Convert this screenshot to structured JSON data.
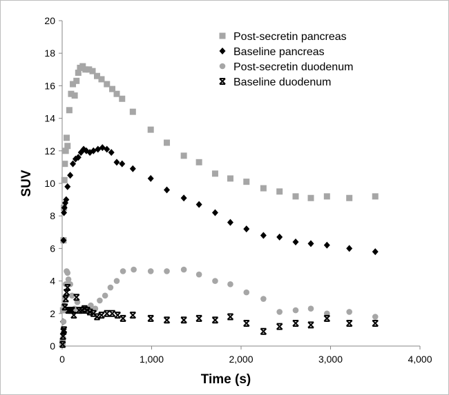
{
  "chart_data": {
    "type": "scatter",
    "xlabel": "Time (s)",
    "ylabel": "SUV",
    "xlim": [
      0,
      4000
    ],
    "ylim": [
      0,
      20
    ],
    "x_ticks": [
      "0",
      "1,000",
      "2,000",
      "3,000",
      "4,000"
    ],
    "y_ticks": [
      "0",
      "2",
      "4",
      "6",
      "8",
      "10",
      "12",
      "14",
      "16",
      "18",
      "20"
    ],
    "grid": false,
    "legend_position": "top-right",
    "series": [
      {
        "name": "Post-secretin pancreas",
        "marker": "square",
        "color": "#a6a6a6",
        "points": [
          [
            5,
            0.3
          ],
          [
            10,
            2.2
          ],
          [
            15,
            6.5
          ],
          [
            20,
            8.5
          ],
          [
            25,
            10.2
          ],
          [
            30,
            11.2
          ],
          [
            40,
            12.0
          ],
          [
            50,
            12.8
          ],
          [
            60,
            12.3
          ],
          [
            80,
            14.5
          ],
          [
            100,
            15.5
          ],
          [
            120,
            16.1
          ],
          [
            140,
            15.4
          ],
          [
            160,
            16.3
          ],
          [
            180,
            16.8
          ],
          [
            200,
            17.1
          ],
          [
            230,
            17.2
          ],
          [
            260,
            17.0
          ],
          [
            300,
            17.0
          ],
          [
            340,
            16.9
          ],
          [
            390,
            16.6
          ],
          [
            440,
            16.4
          ],
          [
            500,
            16.1
          ],
          [
            560,
            15.8
          ],
          [
            610,
            15.5
          ],
          [
            670,
            15.2
          ],
          [
            790,
            14.4
          ],
          [
            990,
            13.3
          ],
          [
            1170,
            12.5
          ],
          [
            1360,
            11.7
          ],
          [
            1530,
            11.3
          ],
          [
            1710,
            10.6
          ],
          [
            1880,
            10.3
          ],
          [
            2060,
            10.1
          ],
          [
            2250,
            9.7
          ],
          [
            2430,
            9.5
          ],
          [
            2610,
            9.2
          ],
          [
            2780,
            9.1
          ],
          [
            2960,
            9.2
          ],
          [
            3210,
            9.1
          ],
          [
            3500,
            9.2
          ]
        ]
      },
      {
        "name": "Baseline pancreas",
        "marker": "diamond",
        "color": "#000000",
        "points": [
          [
            5,
            0.2
          ],
          [
            10,
            1.5
          ],
          [
            15,
            6.5
          ],
          [
            20,
            8.2
          ],
          [
            25,
            8.5
          ],
          [
            35,
            8.8
          ],
          [
            45,
            9.0
          ],
          [
            60,
            9.8
          ],
          [
            90,
            10.5
          ],
          [
            120,
            11.2
          ],
          [
            150,
            11.5
          ],
          [
            180,
            11.6
          ],
          [
            210,
            11.9
          ],
          [
            240,
            12.1
          ],
          [
            270,
            12.0
          ],
          [
            310,
            11.9
          ],
          [
            350,
            12.0
          ],
          [
            400,
            12.1
          ],
          [
            450,
            12.2
          ],
          [
            500,
            12.1
          ],
          [
            550,
            11.9
          ],
          [
            610,
            11.3
          ],
          [
            670,
            11.2
          ],
          [
            790,
            10.9
          ],
          [
            990,
            10.3
          ],
          [
            1170,
            9.6
          ],
          [
            1360,
            9.1
          ],
          [
            1530,
            8.7
          ],
          [
            1710,
            8.2
          ],
          [
            1880,
            7.6
          ],
          [
            2060,
            7.2
          ],
          [
            2250,
            6.8
          ],
          [
            2430,
            6.7
          ],
          [
            2610,
            6.4
          ],
          [
            2780,
            6.3
          ],
          [
            2960,
            6.2
          ],
          [
            3210,
            6.0
          ],
          [
            3500,
            5.8
          ]
        ]
      },
      {
        "name": "Post-secretin duodenum",
        "marker": "circle",
        "color": "#a6a6a6",
        "points": [
          [
            5,
            0.1
          ],
          [
            10,
            0.5
          ],
          [
            15,
            1.5
          ],
          [
            20,
            2.5
          ],
          [
            30,
            3.0
          ],
          [
            40,
            3.8
          ],
          [
            50,
            4.6
          ],
          [
            60,
            4.5
          ],
          [
            70,
            4.1
          ],
          [
            90,
            3.8
          ],
          [
            110,
            3.1
          ],
          [
            140,
            2.3
          ],
          [
            170,
            2.7
          ],
          [
            200,
            2.2
          ],
          [
            240,
            2.3
          ],
          [
            280,
            2.3
          ],
          [
            320,
            2.5
          ],
          [
            370,
            2.3
          ],
          [
            420,
            2.8
          ],
          [
            480,
            3.1
          ],
          [
            540,
            3.6
          ],
          [
            610,
            4.0
          ],
          [
            680,
            4.6
          ],
          [
            800,
            4.7
          ],
          [
            990,
            4.6
          ],
          [
            1170,
            4.6
          ],
          [
            1360,
            4.7
          ],
          [
            1530,
            4.4
          ],
          [
            1710,
            4.0
          ],
          [
            1880,
            3.8
          ],
          [
            2060,
            3.3
          ],
          [
            2250,
            2.9
          ],
          [
            2430,
            2.1
          ],
          [
            2610,
            2.2
          ],
          [
            2780,
            2.3
          ],
          [
            2960,
            2.0
          ],
          [
            3210,
            2.1
          ],
          [
            3500,
            1.8
          ]
        ]
      },
      {
        "name": "Baseline duodenum",
        "marker": "x",
        "color": "#000000",
        "points": [
          [
            5,
            0.1
          ],
          [
            10,
            0.6
          ],
          [
            15,
            0.9
          ],
          [
            20,
            1.0
          ],
          [
            30,
            2.4
          ],
          [
            40,
            2.9
          ],
          [
            50,
            3.3
          ],
          [
            60,
            3.6
          ],
          [
            70,
            2.2
          ],
          [
            90,
            2.2
          ],
          [
            110,
            2.2
          ],
          [
            130,
            1.9
          ],
          [
            160,
            3.0
          ],
          [
            190,
            2.2
          ],
          [
            220,
            2.2
          ],
          [
            250,
            2.3
          ],
          [
            280,
            2.2
          ],
          [
            310,
            2.1
          ],
          [
            350,
            2.0
          ],
          [
            390,
            1.8
          ],
          [
            440,
            1.9
          ],
          [
            500,
            2.0
          ],
          [
            560,
            2.0
          ],
          [
            620,
            1.9
          ],
          [
            680,
            1.7
          ],
          [
            790,
            1.9
          ],
          [
            990,
            1.7
          ],
          [
            1170,
            1.6
          ],
          [
            1360,
            1.6
          ],
          [
            1530,
            1.7
          ],
          [
            1710,
            1.6
          ],
          [
            1880,
            1.8
          ],
          [
            2060,
            1.4
          ],
          [
            2250,
            0.9
          ],
          [
            2430,
            1.2
          ],
          [
            2610,
            1.4
          ],
          [
            2780,
            1.3
          ],
          [
            2960,
            1.7
          ],
          [
            3210,
            1.4
          ],
          [
            3500,
            1.4
          ]
        ]
      }
    ]
  }
}
